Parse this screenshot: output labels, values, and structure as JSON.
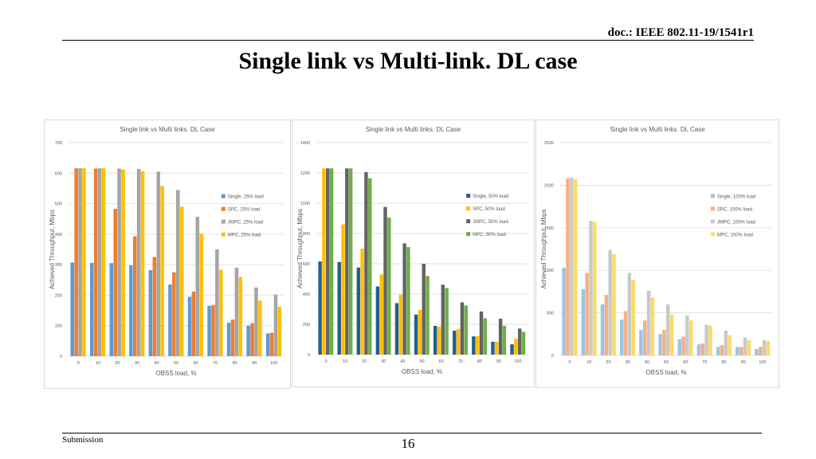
{
  "header": {
    "doc_id": "doc.: IEEE 802.11-19/1541r1",
    "title": "Single link vs Multi-link. DL case"
  },
  "footer": {
    "left": "Submission",
    "page": "16"
  },
  "chart_data": [
    {
      "type": "bar",
      "title": "Single link vs Multi links. DL Case",
      "xlabel": "OBSS load, %",
      "ylabel": "Achieved Throughput, Mbps",
      "categories": [
        "0",
        "10",
        "20",
        "30",
        "40",
        "50",
        "60",
        "70",
        "80",
        "90",
        "100"
      ],
      "ylim": [
        0,
        700
      ],
      "yticks": [
        0,
        100,
        200,
        300,
        400,
        500,
        600,
        700
      ],
      "grid": true,
      "legend": "right",
      "series": [
        {
          "name": "Single, 25% load",
          "color": "#5b9bd5",
          "values": [
            307,
            306,
            305,
            298,
            282,
            235,
            195,
            165,
            110,
            100,
            75
          ]
        },
        {
          "name": "SPC, 25% load",
          "color": "#ed7d31",
          "values": [
            616,
            615,
            483,
            393,
            325,
            275,
            212,
            168,
            120,
            108,
            77
          ]
        },
        {
          "name": "JMPC, 25% load",
          "color": "#a5a5a5",
          "values": [
            616,
            616,
            615,
            614,
            605,
            545,
            457,
            350,
            290,
            225,
            202
          ]
        },
        {
          "name": "MPC, 25% load",
          "color": "#ffc000",
          "values": [
            616,
            616,
            612,
            606,
            558,
            490,
            402,
            283,
            260,
            182,
            162
          ]
        }
      ]
    },
    {
      "type": "bar",
      "title": "Single link vs Multi links. DL Case",
      "xlabel": "OBSS load, %",
      "ylabel": "Achieved Throughput, Mbps",
      "categories": [
        "0",
        "10",
        "20",
        "30",
        "40",
        "50",
        "60",
        "70",
        "80",
        "90",
        "100"
      ],
      "ylim": [
        0,
        1400
      ],
      "yticks": [
        0,
        200,
        400,
        600,
        800,
        1000,
        1200,
        1400
      ],
      "grid": true,
      "legend": "right",
      "series": [
        {
          "name": "Single, 50% load",
          "color": "#255e91",
          "values": [
            615,
            612,
            575,
            450,
            340,
            265,
            190,
            158,
            120,
            85,
            68
          ]
        },
        {
          "name": "SPC, 50% load",
          "color": "#ffc000",
          "values": [
            1230,
            860,
            700,
            530,
            395,
            295,
            185,
            170,
            123,
            85,
            105
          ]
        },
        {
          "name": "JMPC, 50% load",
          "color": "#636363",
          "values": [
            1230,
            1230,
            1205,
            975,
            735,
            600,
            462,
            345,
            285,
            237,
            172
          ]
        },
        {
          "name": "MPC, 50% load",
          "color": "#70ad47",
          "values": [
            1230,
            1230,
            1165,
            905,
            710,
            520,
            440,
            325,
            240,
            190,
            150
          ]
        }
      ]
    },
    {
      "type": "bar",
      "title": "Single link vs Multi links. DL Case",
      "xlabel": "OBSS load, %",
      "ylabel": "Achieved Throughput, Mbps",
      "categories": [
        "0",
        "10",
        "20",
        "30",
        "40",
        "50",
        "60",
        "70",
        "80",
        "90",
        "100"
      ],
      "ylim": [
        0,
        2500
      ],
      "yticks": [
        0,
        500,
        1000,
        1500,
        2000,
        2500
      ],
      "grid": true,
      "legend": "right",
      "series": [
        {
          "name": "Single, 100% load",
          "color": "#9dc3e6",
          "values": [
            1030,
            780,
            600,
            420,
            300,
            250,
            190,
            130,
            100,
            100,
            75
          ]
        },
        {
          "name": "SPC, 100% load",
          "color": "#f4b183",
          "values": [
            2080,
            970,
            710,
            520,
            410,
            300,
            220,
            140,
            120,
            100,
            100
          ]
        },
        {
          "name": "JMPC, 100% load",
          "color": "#c9c9c9",
          "values": [
            2090,
            1580,
            1240,
            970,
            760,
            600,
            470,
            360,
            290,
            210,
            180
          ]
        },
        {
          "name": "MPC, 100% load",
          "color": "#ffd966",
          "values": [
            2070,
            1570,
            1190,
            890,
            680,
            480,
            410,
            350,
            240,
            180,
            170
          ]
        }
      ]
    }
  ]
}
